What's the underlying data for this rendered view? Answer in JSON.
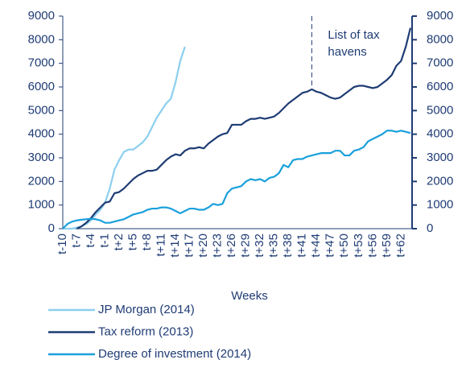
{
  "chart_data": {
    "type": "line",
    "x_label": "Weeks",
    "categories": [
      "t-10",
      null,
      null,
      "t-7",
      null,
      null,
      "t-4",
      null,
      null,
      "t-1",
      null,
      null,
      "t+2",
      null,
      null,
      "t+5",
      null,
      null,
      "t+8",
      null,
      null,
      "t+11",
      null,
      null,
      "t+14",
      null,
      null,
      "t+17",
      null,
      null,
      "t+20",
      null,
      null,
      "t+23",
      null,
      null,
      "t+26",
      null,
      null,
      "t+29",
      null,
      null,
      "t+32",
      null,
      null,
      "t+35",
      null,
      null,
      "t+38",
      null,
      null,
      "t+41",
      null,
      null,
      "t+44",
      null,
      null,
      "t+47",
      null,
      null,
      "t+50",
      null,
      null,
      "t+53",
      null,
      null,
      "t+56",
      null,
      null,
      "t+59",
      null,
      null,
      "t+62",
      null,
      null
    ],
    "series": [
      {
        "name": "JP Morgan (2014)",
        "color": "#8ccfee",
        "values": [
          0,
          0,
          0,
          50,
          100,
          200,
          350,
          600,
          800,
          1100,
          1700,
          2500,
          2900,
          3250,
          3350,
          3350,
          3500,
          3650,
          3900,
          4300,
          4700,
          5000,
          5300,
          5500,
          6200,
          7100,
          7700,
          null,
          null,
          null,
          null,
          null,
          null,
          null,
          null,
          null,
          null,
          null,
          null,
          null,
          null,
          null,
          null,
          null,
          null,
          null,
          null,
          null,
          null,
          null,
          null,
          null,
          null,
          null,
          null,
          null,
          null,
          null,
          null,
          null,
          null,
          null,
          null,
          null,
          null,
          null,
          null,
          null,
          null,
          null,
          null,
          null,
          null,
          null,
          null
        ]
      },
      {
        "name": "Tax reform (2013)",
        "color": "#1f3c74",
        "values": [
          null,
          null,
          null,
          0,
          100,
          250,
          450,
          700,
          900,
          1100,
          1150,
          1500,
          1550,
          1700,
          1900,
          2100,
          2250,
          2350,
          2450,
          2450,
          2500,
          2700,
          2900,
          3050,
          3150,
          3100,
          3300,
          3400,
          3400,
          3450,
          3400,
          3600,
          3750,
          3900,
          4000,
          4050,
          4400,
          4400,
          4400,
          4550,
          4650,
          4650,
          4700,
          4650,
          4700,
          4750,
          4900,
          5100,
          5300,
          5450,
          5600,
          5750,
          5800,
          5900,
          5800,
          5750,
          5650,
          5550,
          5500,
          5550,
          5700,
          5850,
          6000,
          6050,
          6050,
          6000,
          5950,
          6000,
          6150,
          6300,
          6500,
          6900,
          7100,
          7700,
          8500
        ]
      },
      {
        "name": "Degree of investment (2014)",
        "color": "#1aa0db",
        "values": [
          0,
          200,
          300,
          350,
          380,
          400,
          420,
          400,
          350,
          250,
          250,
          300,
          350,
          400,
          500,
          600,
          650,
          700,
          800,
          850,
          850,
          900,
          900,
          850,
          750,
          650,
          750,
          850,
          850,
          800,
          800,
          900,
          1050,
          1000,
          1050,
          1500,
          1700,
          1750,
          1800,
          2000,
          2100,
          2050,
          2100,
          2000,
          2150,
          2200,
          2350,
          2700,
          2600,
          2900,
          2950,
          2950,
          3050,
          3100,
          3150,
          3200,
          3200,
          3200,
          3300,
          3300,
          3100,
          3100,
          3300,
          3350,
          3450,
          3700,
          3800,
          3900,
          4000,
          4150,
          4150,
          4100,
          4150,
          4100,
          4050
        ]
      }
    ],
    "ylim": [
      0,
      9000
    ],
    "yticks": [
      0,
      1000,
      2000,
      3000,
      4000,
      5000,
      6000,
      7000,
      8000,
      9000
    ],
    "y2lim": [
      0,
      9000
    ],
    "y2ticks": [
      0,
      1000,
      2000,
      3000,
      4000,
      5000,
      6000,
      7000,
      8000,
      9000
    ],
    "annotation": {
      "text": [
        "List of tax",
        "havens"
      ],
      "x": 53
    },
    "grid": false,
    "legend": "bottom"
  }
}
